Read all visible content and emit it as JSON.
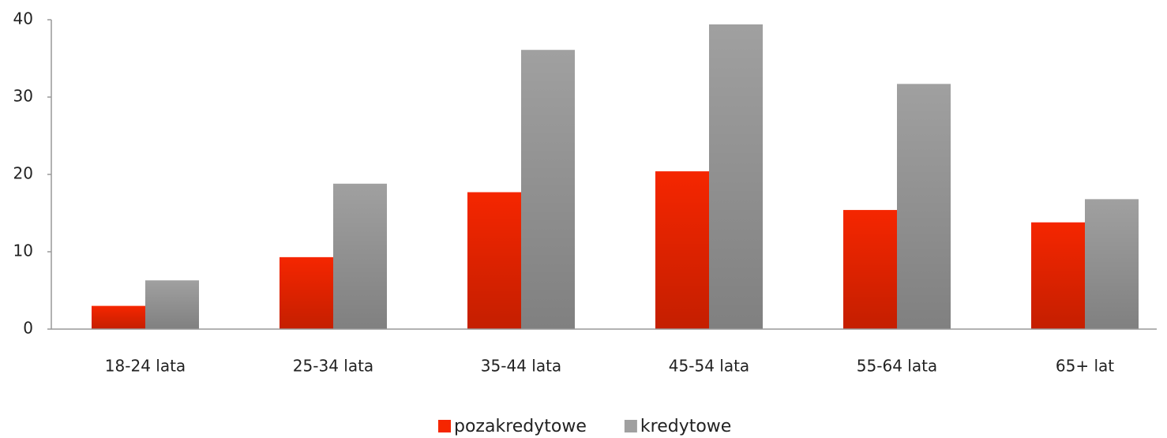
{
  "chart_data": {
    "type": "bar",
    "categories": [
      "18-24 lata",
      "25-34 lata",
      "35-44 lata",
      "45-54 lata",
      "55-64 lata",
      "65+ lat"
    ],
    "series": [
      {
        "name": "pozakredytowe",
        "color": "#f52600",
        "values": [
          3.0,
          9.3,
          17.7,
          20.4,
          15.4,
          13.8
        ]
      },
      {
        "name": "kredytowe",
        "color": "#a0a0a0",
        "values": [
          6.3,
          18.8,
          36.1,
          39.4,
          31.7,
          16.8
        ]
      }
    ],
    "ylim": [
      0,
      40
    ],
    "yticks": [
      0,
      10,
      20,
      30,
      40
    ],
    "grid": false
  }
}
